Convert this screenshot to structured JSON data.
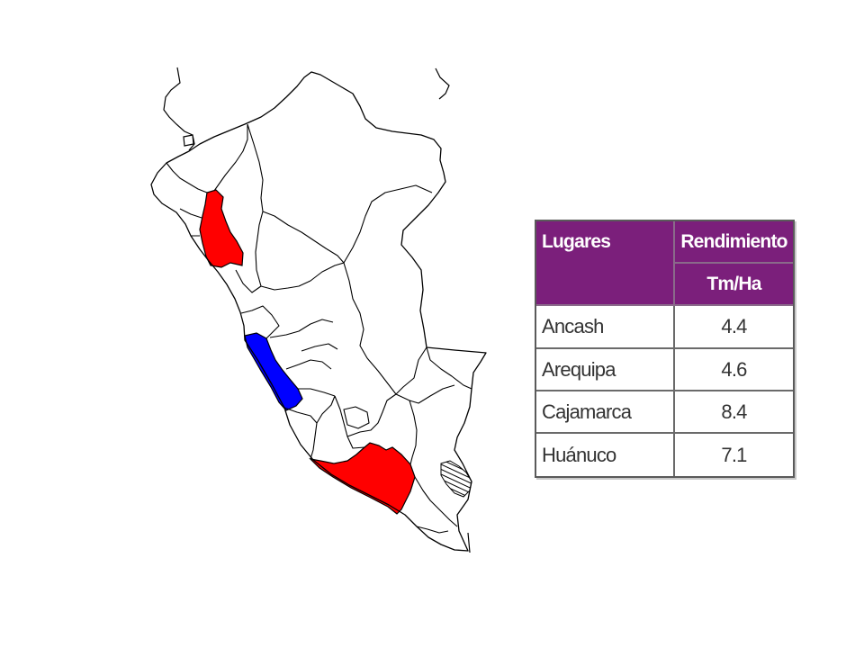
{
  "map": {
    "outline_color": "#000000",
    "highlight_colors": {
      "red": "#ff0000",
      "blue": "#0000ff"
    }
  },
  "table": {
    "header_color": "#7b1f7b",
    "headers": {
      "places": "Lugares",
      "yield": "Rendimiento",
      "unit": "Tm/Ha"
    },
    "rows": [
      {
        "place": "Ancash",
        "value": "4.4"
      },
      {
        "place": "Arequipa",
        "value": "4.6"
      },
      {
        "place": "Cajamarca",
        "value": "8.4"
      },
      {
        "place": "Huánuco",
        "value": "7.1"
      }
    ]
  }
}
